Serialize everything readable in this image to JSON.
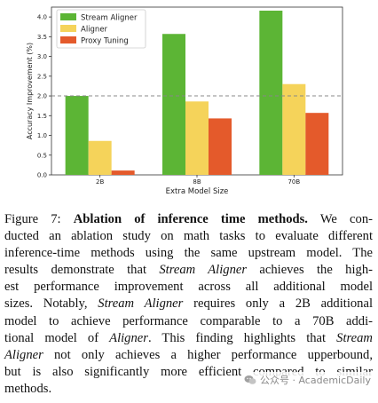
{
  "chart_data": {
    "type": "bar",
    "categories": [
      "2B",
      "8B",
      "70B"
    ],
    "series": [
      {
        "name": "Stream Aligner",
        "values": [
          2.0,
          3.57,
          4.16
        ],
        "color": "#5cb535"
      },
      {
        "name": "Aligner",
        "values": [
          0.86,
          1.86,
          2.3
        ],
        "color": "#f5d35a"
      },
      {
        "name": "Proxy Tuning",
        "values": [
          0.11,
          1.43,
          1.57
        ],
        "color": "#e45a2b"
      }
    ],
    "xlabel": "Extra Model Size",
    "ylabel": "Accuracy Improvement (%)",
    "ylim": [
      0,
      4.25
    ],
    "yticks": [
      "0.0",
      "0.5",
      "1.0",
      "1.5",
      "2.0",
      "2.5",
      "3.0",
      "3.5",
      "4.0"
    ],
    "reference_line": 2.0,
    "legend_position": "top-left",
    "grid": false
  },
  "caption": {
    "figure_label": "Figure 7:",
    "title": "Ablation of inference time methods.",
    "lines": [
      "Figure 7: <b>Ablation of inference time methods.</b> We con-",
      "ducted an ablation study on math tasks to evaluate different",
      "inference-time methods using the same upstream model. The",
      "results demonstrate that <i>Stream Aligner</i> achieves the high-",
      "est performance improvement across all additional model",
      "sizes. Notably, <i>Stream Aligner</i> requires only a 2B additional",
      "model to achieve performance comparable to a 70B addi-",
      "tional model of <i>Aligner</i>. This finding highlights that <i>Stream</i>",
      "<i>Aligner</i> not only achieves a higher performance upperbound,",
      "but is also significantly more efficient compared to similar",
      "methods."
    ]
  },
  "watermark": {
    "text": "公众号 · AcademicDaily",
    "icon": "wechat-icon"
  }
}
